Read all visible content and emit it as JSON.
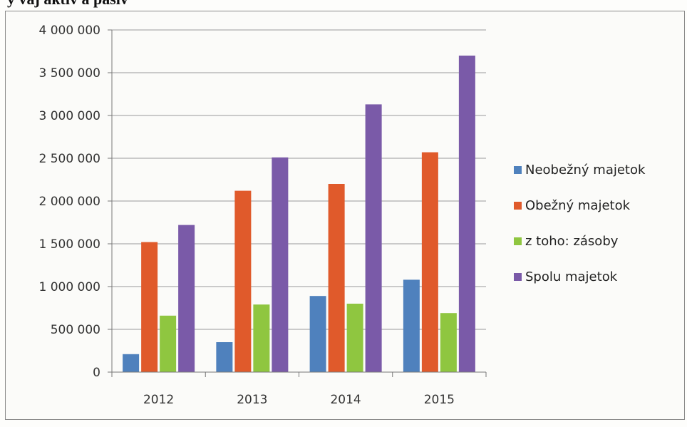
{
  "header": {
    "cut_title": "y vaj aktiv a pasív"
  },
  "chart_data": {
    "type": "bar",
    "categories": [
      "2012",
      "2013",
      "2014",
      "2015"
    ],
    "series": [
      {
        "name": "Neobežný majetok",
        "values": [
          210000,
          350000,
          890000,
          1080000
        ],
        "color": "#4f81bd"
      },
      {
        "name": "Obežný majetok",
        "values": [
          1520000,
          2120000,
          2200000,
          2570000
        ],
        "color": "#e05a2b"
      },
      {
        "name": "z toho: zásoby",
        "values": [
          660000,
          790000,
          800000,
          690000
        ],
        "color": "#8fc640"
      },
      {
        "name": "Spolu majetok",
        "values": [
          1720000,
          2510000,
          3130000,
          3700000
        ],
        "color": "#7a5aa8"
      }
    ],
    "yticks": [
      "0",
      "500 000",
      "1 000 000",
      "1 500 000",
      "2 000 000",
      "2 500 000",
      "3 000 000",
      "3 500 000",
      "4 000 000"
    ],
    "ylim": [
      0,
      4000000
    ],
    "legend_position": "right",
    "grid": true
  }
}
